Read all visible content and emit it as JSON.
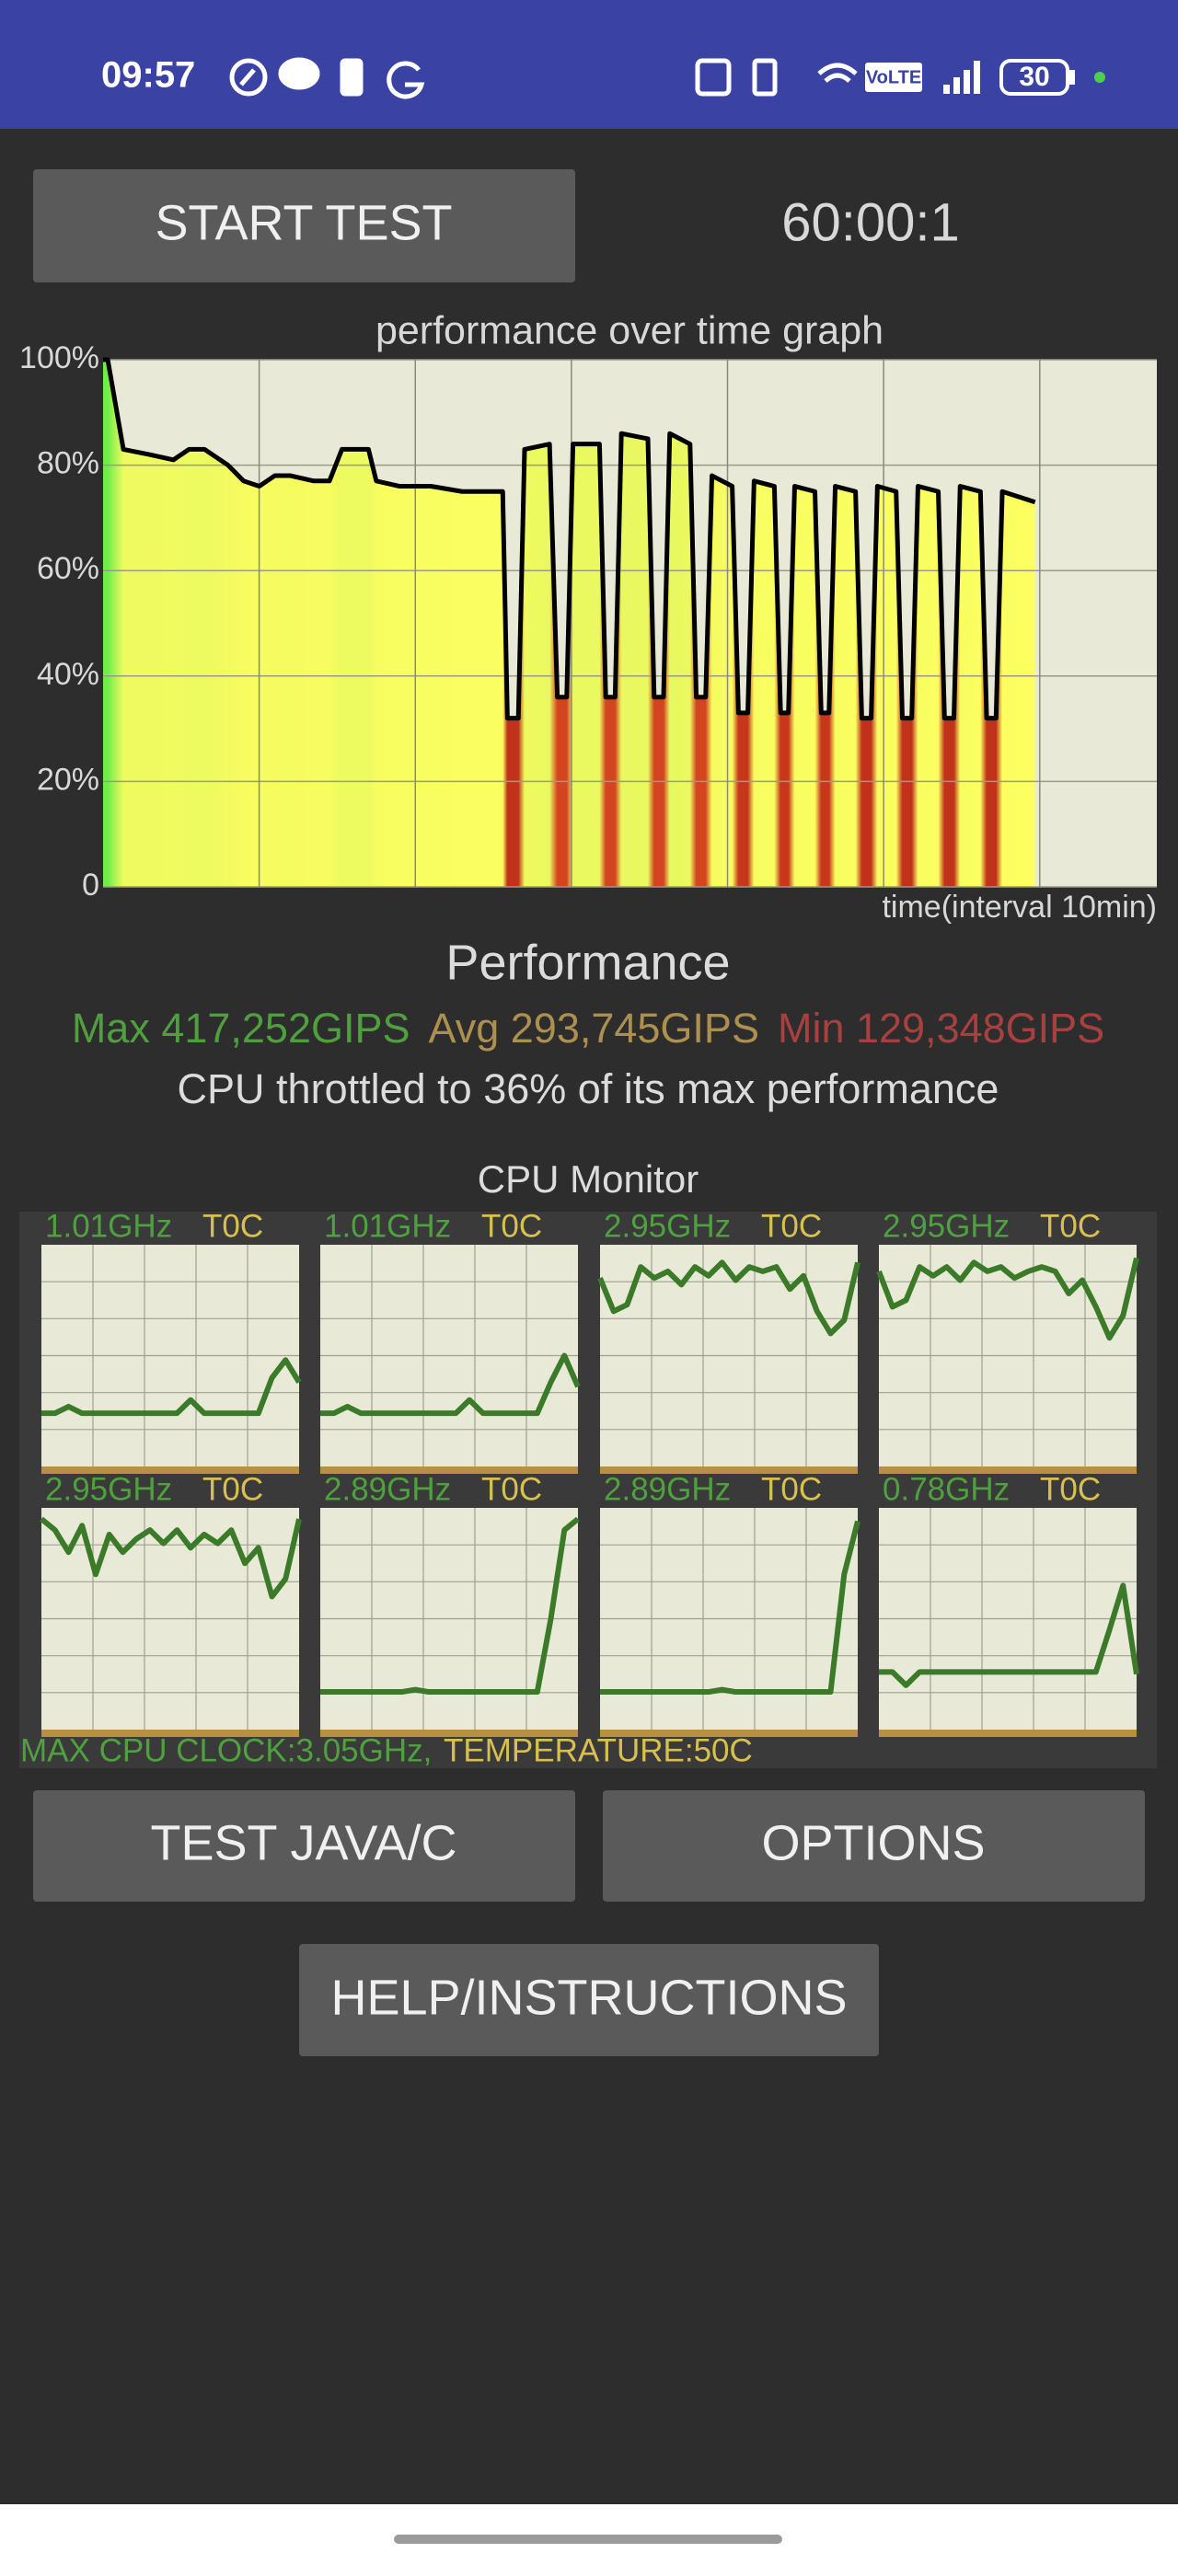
{
  "status_bar": {
    "time": "09:57",
    "volte": "VoLTE",
    "battery": "30"
  },
  "buttons": {
    "start": "START TEST",
    "test_java": "TEST JAVA/C",
    "options": "OPTIONS",
    "help": "HELP/INSTRUCTIONS"
  },
  "timer": "60:00:1",
  "chart_data": {
    "type": "area",
    "title": "performance over time graph",
    "x_label": "time(interval 10min)",
    "x": [
      0,
      0.3,
      1.3,
      3,
      4.5,
      5.5,
      6.5,
      8,
      9,
      10,
      11,
      12,
      13.5,
      14.5,
      15.3,
      17,
      17.5,
      19,
      21,
      23,
      25.3,
      25.6,
      25.9,
      26.6,
      27.0,
      28.6,
      29.1,
      29.7,
      30.1,
      31.8,
      32.2,
      32.8,
      33.2,
      34.9,
      35.3,
      35.9,
      36.3,
      37.6,
      38.0,
      38.6,
      39.0,
      40.3,
      40.7,
      41.3,
      41.7,
      43.0,
      43.4,
      43.9,
      44.3,
      45.6,
      46.0,
      46.5,
      46.9,
      48.2,
      48.6,
      49.2,
      49.6,
      50.8,
      51.2,
      51.8,
      52.2,
      53.5,
      53.9,
      54.5,
      54.9,
      56.2,
      56.6,
      57.2,
      57.6,
      59.7
    ],
    "values": [
      100,
      100,
      83,
      82,
      81,
      83,
      83,
      80,
      77,
      76,
      78,
      78,
      77,
      77,
      83,
      83,
      77,
      76,
      76,
      75,
      75,
      75,
      32,
      32,
      83,
      84,
      36,
      36,
      84,
      84,
      36,
      36,
      86,
      85,
      36,
      36,
      86,
      84,
      36,
      36,
      78,
      76,
      33,
      33,
      77,
      76,
      33,
      33,
      76,
      75,
      33,
      33,
      76,
      75,
      32,
      32,
      76,
      75,
      32,
      32,
      76,
      75,
      32,
      32,
      76,
      75,
      32,
      32,
      75,
      73
    ],
    "color": "#000000",
    "xlim": [
      0,
      67.5
    ],
    "xgrid": [
      10,
      20,
      30,
      40,
      50,
      60
    ],
    "ylim": [
      0,
      100
    ],
    "yticks": [
      0,
      {
        "value": 20,
        "label": "20%"
      },
      {
        "value": 40,
        "label": "40%"
      },
      {
        "value": 60,
        "label": "60%"
      },
      {
        "value": 80,
        "label": "80%"
      },
      {
        "value": 100,
        "label": "100%"
      }
    ],
    "grid": true
  },
  "performance": {
    "title": "Performance",
    "max": "Max 417,252GIPS",
    "avg": "Avg 293,745GIPS",
    "min": "Min 129,348GIPS",
    "throttle": "CPU throttled to 36% of its max performance"
  },
  "cpu_monitor": {
    "title": "CPU Monitor",
    "ylim": [
      0,
      100
    ],
    "cores": [
      {
        "clock": "1.01GHz",
        "temp": "T0C",
        "values": [
          24,
          24,
          27,
          24,
          24,
          24,
          24,
          24,
          24,
          24,
          24,
          30,
          24,
          24,
          24,
          24,
          24,
          40,
          48,
          38
        ]
      },
      {
        "clock": "1.01GHz",
        "temp": "T0C",
        "values": [
          24,
          24,
          27,
          24,
          24,
          24,
          24,
          24,
          24,
          24,
          24,
          30,
          24,
          24,
          24,
          24,
          24,
          38,
          50,
          36
        ]
      },
      {
        "clock": "2.95GHz",
        "temp": "T0C",
        "values": [
          85,
          70,
          73,
          90,
          85,
          88,
          82,
          90,
          86,
          92,
          84,
          90,
          88,
          90,
          80,
          86,
          70,
          60,
          66,
          92
        ]
      },
      {
        "clock": "2.95GHz",
        "temp": "T0C",
        "values": [
          88,
          72,
          75,
          90,
          86,
          90,
          84,
          92,
          88,
          90,
          85,
          88,
          90,
          88,
          78,
          84,
          72,
          58,
          68,
          94
        ]
      },
      {
        "clock": "2.95GHz",
        "temp": "T0C",
        "values": [
          95,
          90,
          80,
          92,
          70,
          88,
          80,
          86,
          90,
          84,
          90,
          82,
          88,
          84,
          90,
          75,
          82,
          60,
          68,
          95
        ]
      },
      {
        "clock": "2.89GHz",
        "temp": "T0C",
        "values": [
          17,
          17,
          17,
          17,
          17,
          17,
          17,
          18,
          17,
          17,
          17,
          17,
          17,
          17,
          17,
          17,
          17,
          50,
          90,
          95
        ]
      },
      {
        "clock": "2.89GHz",
        "temp": "T0C",
        "values": [
          17,
          17,
          17,
          17,
          17,
          17,
          17,
          17,
          17,
          18,
          17,
          17,
          17,
          17,
          17,
          17,
          17,
          17,
          70,
          94
        ]
      },
      {
        "clock": "0.78GHz",
        "temp": "T0C",
        "values": [
          26,
          26,
          20,
          26,
          26,
          26,
          26,
          26,
          26,
          26,
          26,
          26,
          26,
          26,
          26,
          26,
          26,
          45,
          65,
          25
        ]
      }
    ],
    "max_clock": "MAX CPU CLOCK:3.05GHz,",
    "temperature": "TEMPERATURE:50C"
  }
}
